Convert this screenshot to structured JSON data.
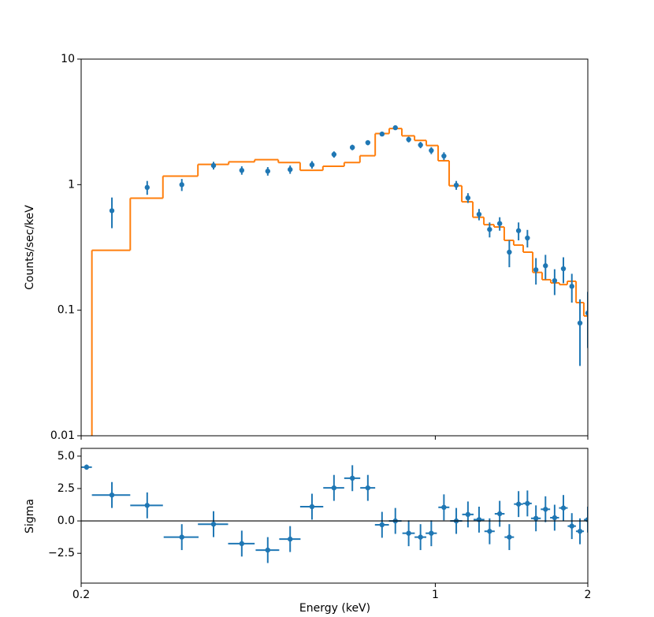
{
  "chart_data": [
    {
      "type": "errorbar",
      "ylabel": "Counts/sec/keV",
      "xlog": true,
      "ylog": true,
      "xlim": [
        0.2,
        2
      ],
      "ylim": [
        0.01,
        10
      ],
      "yticks": [
        0.01,
        0.1,
        1,
        10
      ],
      "color": "#1f77b4",
      "x": [
        0.23,
        0.27,
        0.316,
        0.365,
        0.415,
        0.467,
        0.517,
        0.571,
        0.631,
        0.686,
        0.736,
        0.785,
        0.834,
        0.886,
        0.935,
        0.982,
        1.04,
        1.1,
        1.16,
        1.22,
        1.28,
        1.34,
        1.4,
        1.46,
        1.52,
        1.58,
        1.65,
        1.72,
        1.79,
        1.86,
        1.93,
        2.0
      ],
      "values": [
        0.62,
        0.95,
        1.0,
        1.42,
        1.3,
        1.28,
        1.32,
        1.44,
        1.74,
        1.98,
        2.16,
        2.53,
        2.84,
        2.29,
        2.07,
        1.87,
        1.69,
        0.99,
        0.785,
        0.58,
        0.44,
        0.49,
        0.29,
        0.43,
        0.376,
        0.21,
        0.226,
        0.172,
        0.214,
        0.155,
        0.079,
        0.095
      ],
      "errors": [
        0.17,
        0.12,
        0.11,
        0.1,
        0.1,
        0.1,
        0.1,
        0.1,
        0.1,
        0.1,
        0.1,
        0.1,
        0.1,
        0.12,
        0.12,
        0.12,
        0.12,
        0.08,
        0.07,
        0.06,
        0.06,
        0.06,
        0.07,
        0.07,
        0.06,
        0.05,
        0.05,
        0.04,
        0.05,
        0.04,
        0.043,
        0.045
      ],
      "model_color": "#ff7f0e",
      "model_edges": [
        0.21,
        0.25,
        0.29,
        0.34,
        0.391,
        0.44,
        0.49,
        0.541,
        0.6,
        0.661,
        0.71,
        0.761,
        0.811,
        0.859,
        0.91,
        0.96,
        1.013,
        1.065,
        1.128,
        1.186,
        1.247,
        1.306,
        1.368,
        1.428,
        1.491,
        1.557,
        1.625,
        1.69,
        1.758,
        1.822,
        1.896,
        1.964,
        2.0
      ],
      "model_values": [
        0.3,
        0.78,
        1.17,
        1.45,
        1.52,
        1.58,
        1.5,
        1.3,
        1.4,
        1.5,
        1.7,
        2.55,
        2.8,
        2.45,
        2.25,
        2.05,
        1.55,
        0.98,
        0.73,
        0.55,
        0.48,
        0.46,
        0.36,
        0.33,
        0.29,
        0.2,
        0.175,
        0.165,
        0.16,
        0.17,
        0.115,
        0.09
      ]
    },
    {
      "type": "errorbar",
      "ylabel": "Sigma",
      "xlabel": "Energy (keV)",
      "xlog": true,
      "ylog": false,
      "xlim": [
        0.2,
        2
      ],
      "ylim": [
        -4.8,
        5.6
      ],
      "xticks": [
        0.2,
        1,
        2
      ],
      "yticks": [
        {
          "value": 5,
          "label": "5.0"
        },
        {
          "value": 2.5,
          "label": "2.5"
        },
        {
          "value": 0,
          "label": "0.0"
        },
        {
          "value": -2.5,
          "label": "−2.5"
        }
      ],
      "hline": 0,
      "color": "#1f77b4",
      "x": [
        0.205,
        0.23,
        0.27,
        0.316,
        0.365,
        0.415,
        0.467,
        0.517,
        0.571,
        0.631,
        0.686,
        0.736,
        0.785,
        0.834,
        0.886,
        0.935,
        0.982,
        1.04,
        1.1,
        1.16,
        1.22,
        1.28,
        1.34,
        1.4,
        1.46,
        1.52,
        1.58,
        1.65,
        1.72,
        1.79,
        1.86,
        1.93,
        2.0
      ],
      "xerr": [
        0.005,
        0.02,
        0.02,
        0.025,
        0.025,
        0.025,
        0.025,
        0.025,
        0.03,
        0.03,
        0.025,
        0.025,
        0.025,
        0.024,
        0.025,
        0.025,
        0.025,
        0.026,
        0.03,
        0.03,
        0.03,
        0.03,
        0.03,
        0.03,
        0.03,
        0.03,
        0.035,
        0.035,
        0.035,
        0.035,
        0.035,
        0.035,
        0.035
      ],
      "values": [
        4.15,
        2.0,
        1.2,
        -1.25,
        -0.25,
        -1.75,
        -2.25,
        -1.4,
        1.1,
        2.55,
        3.3,
        2.55,
        -0.3,
        0.0,
        -0.95,
        -1.25,
        -0.95,
        1.05,
        0.0,
        0.5,
        0.1,
        -0.8,
        0.55,
        -1.25,
        1.3,
        1.35,
        0.2,
        0.9,
        0.25,
        1.0,
        -0.4,
        -0.8,
        0.1
      ],
      "errors": [
        0.2,
        1,
        1,
        1,
        1,
        1,
        1,
        1,
        1,
        1,
        1,
        1,
        1,
        1,
        1,
        1,
        1,
        1,
        1,
        1,
        1,
        1,
        1,
        1,
        1,
        1,
        1,
        1,
        1,
        1,
        1,
        1,
        1
      ]
    }
  ]
}
